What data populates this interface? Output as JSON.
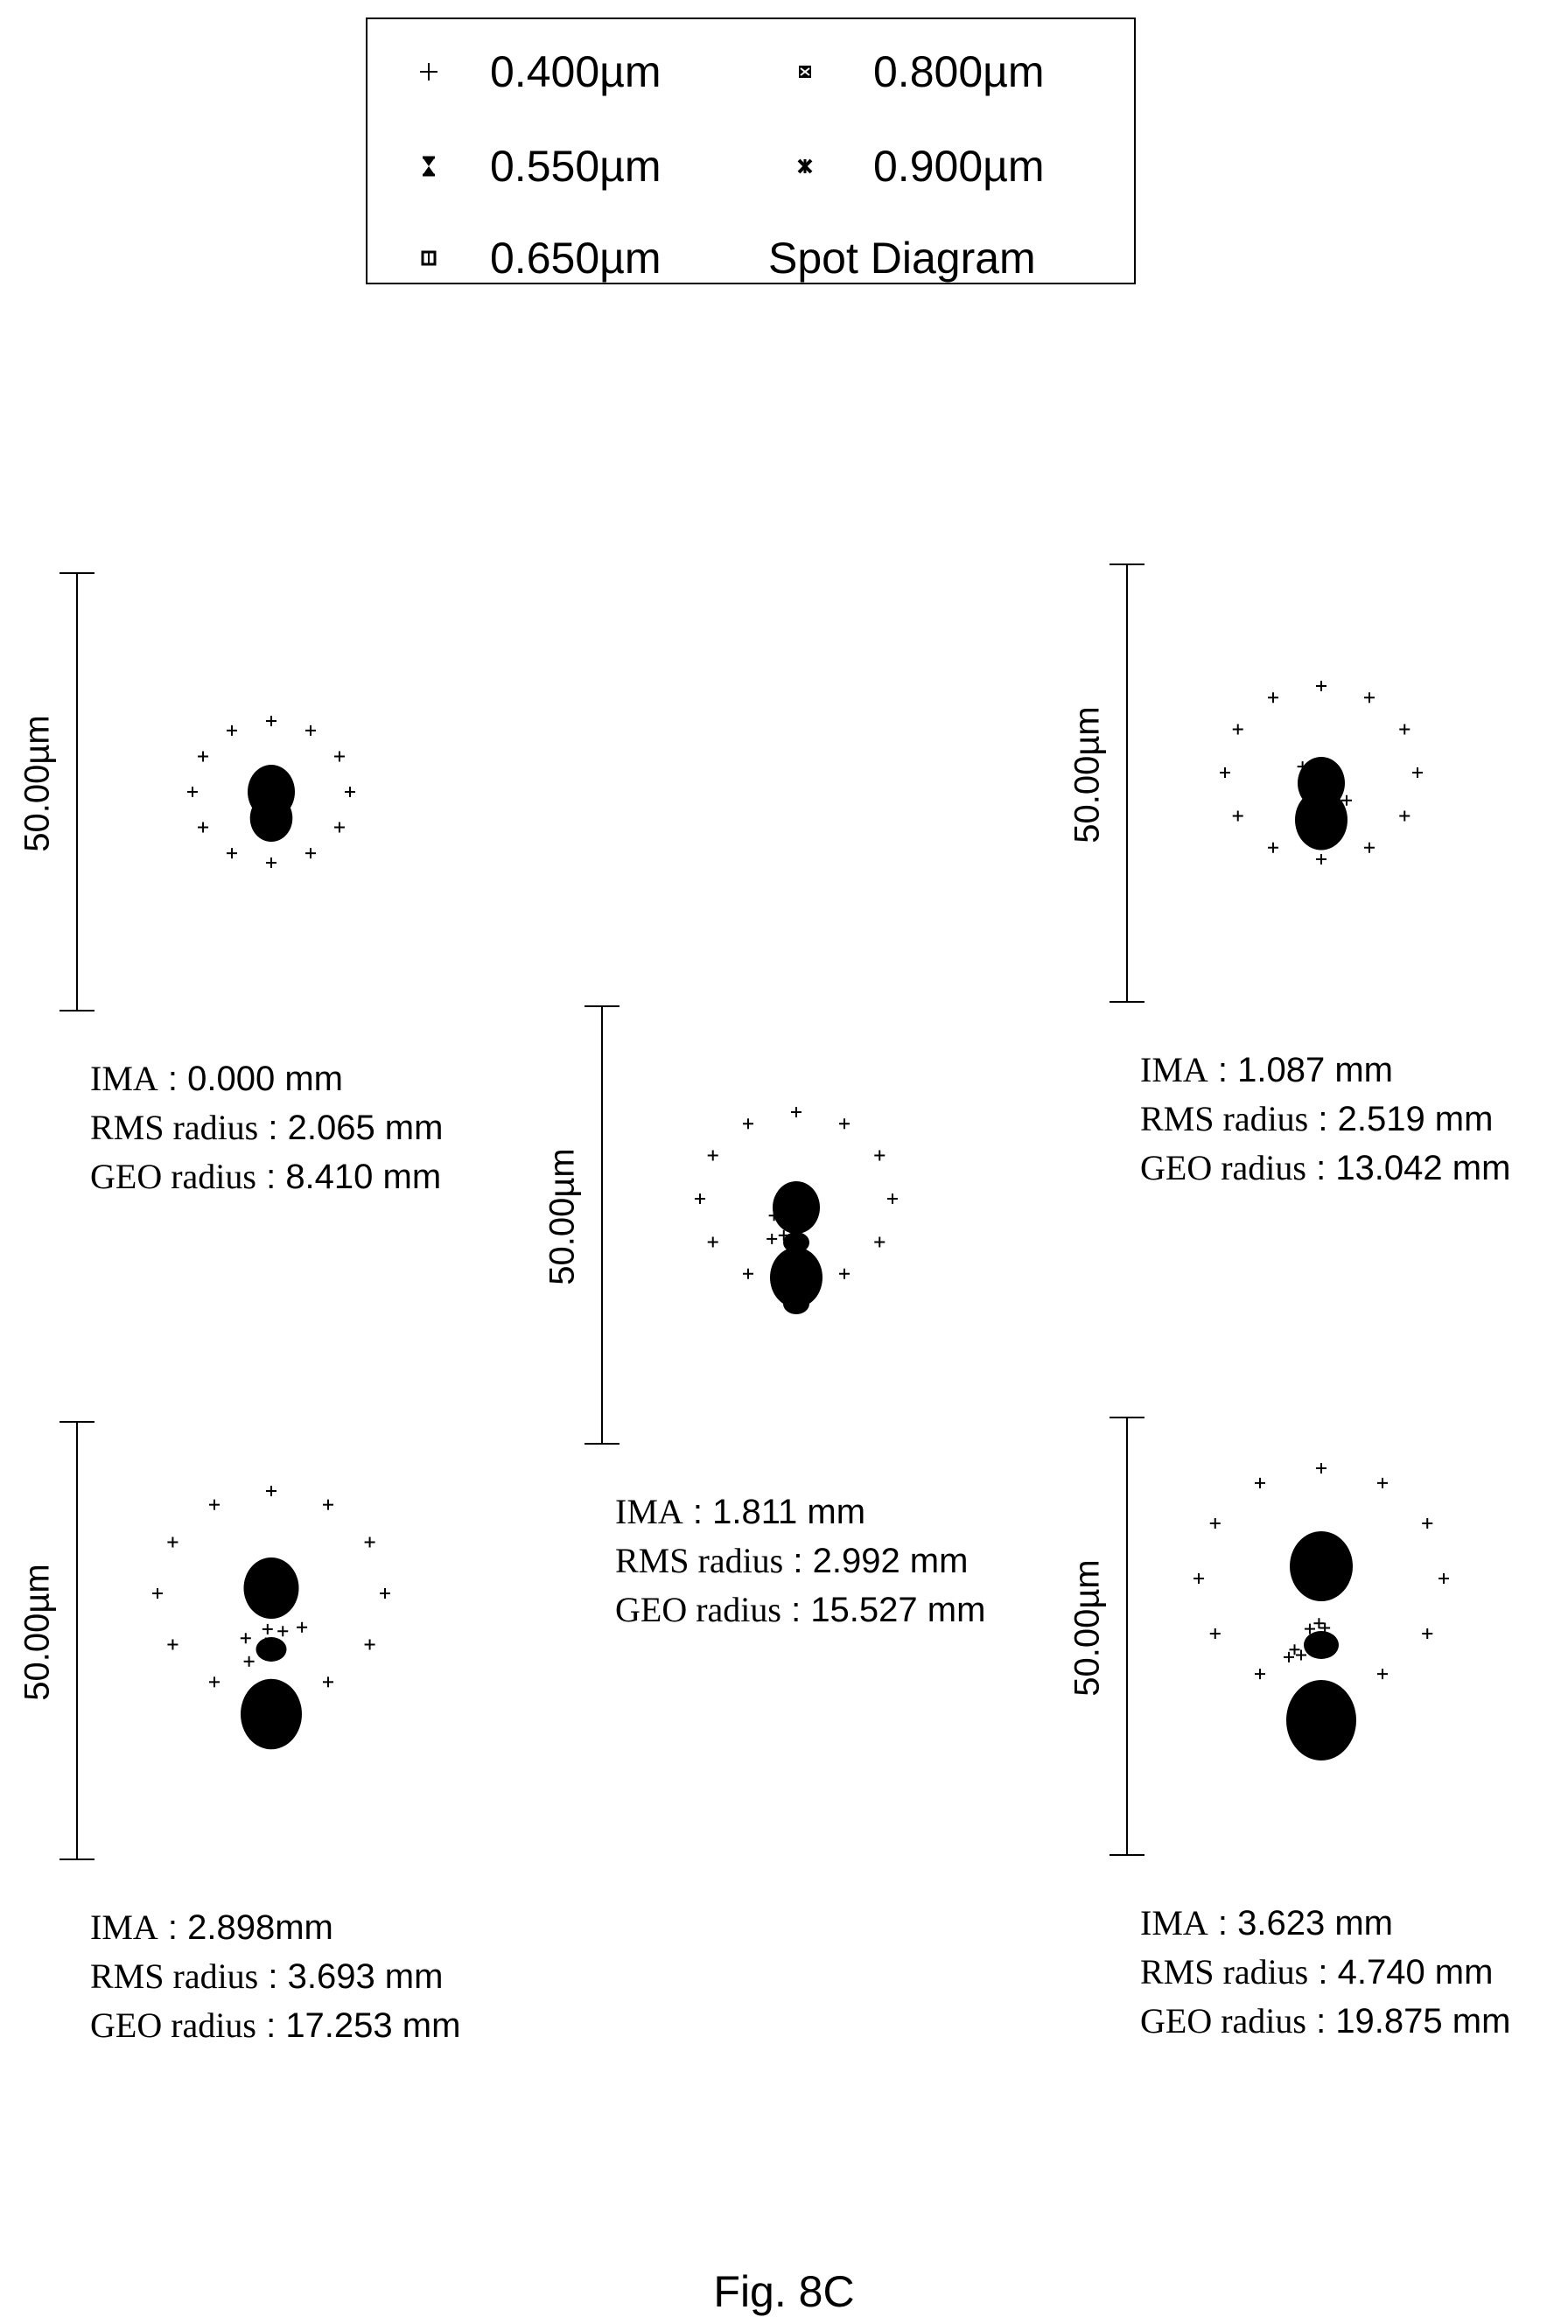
{
  "legend": {
    "items": [
      {
        "label": "0.400µm",
        "marker": "plus"
      },
      {
        "label": "0.550µm",
        "marker": "hourglass"
      },
      {
        "label": "0.650µm",
        "marker": "square-open"
      },
      {
        "label": "0.800µm",
        "marker": "square-hatched"
      },
      {
        "label": "0.900µm",
        "marker": "x-cross"
      }
    ],
    "title": "Spot Diagram"
  },
  "chart_data": [
    {
      "type": "scatter",
      "title": "",
      "scale_bar": "50.00µm",
      "stats": {
        "ima_label": "IMA",
        "ima": "0.000 mm",
        "rms_label": "RMS radius",
        "rms": "2.065 mm",
        "geo_label": "GEO radius",
        "geo": "8.410 mm"
      },
      "spots": {
        "plus_ring_radius": 9.0,
        "plus_ring_count": 12,
        "core_center": [
          0,
          0
        ],
        "core_radius": 2.7,
        "dy_by_wavelength": {
          "0.550": 0,
          "0.650": 0,
          "0.800": 0,
          "0.900": 0
        }
      }
    },
    {
      "type": "scatter",
      "title": "",
      "scale_bar": "50.00µm",
      "stats": {
        "ima_label": "IMA",
        "ima": "1.811 mm",
        "rms_label": "RMS radius",
        "rms": "2.992 mm",
        "geo_label": "GEO radius",
        "geo": "15.527 mm"
      },
      "spots": {
        "plus_ring_radius": 11,
        "plus_ring_count": 12,
        "core_center": [
          0,
          -5
        ],
        "core_radius": 3,
        "dy_by_wavelength": {
          "0.550": -5,
          "0.650": -1,
          "0.800": 2,
          "0.900": 6
        }
      }
    },
    {
      "type": "scatter",
      "title": "",
      "scale_bar": "50.00µm",
      "stats": {
        "ima_label": "IMA",
        "ima": "1.087 mm",
        "rms_label": "RMS radius",
        "rms": "2.519 mm",
        "geo_label": "GEO radius",
        "geo": "13.042 mm"
      },
      "spots": {
        "plus_ring_radius": 11,
        "plus_ring_count": 12,
        "core_center": [
          0,
          -2
        ],
        "core_radius": 3,
        "dy_by_wavelength": {
          "0.550": -3,
          "0.650": -2,
          "0.800": 0,
          "0.900": 2
        }
      }
    },
    {
      "type": "scatter",
      "title": "",
      "scale_bar": "50.00µm",
      "stats": {
        "ima_label": "IMA",
        "ima": "2.898mm",
        "rms_label": "RMS radius",
        "rms": "3.693 mm",
        "geo_label": "GEO radius",
        "geo": "17.253 mm"
      },
      "spots": {
        "plus_ring_radius": 13,
        "plus_ring_count": 12,
        "core_center": [
          0,
          -9
        ],
        "core_radius": 3.5,
        "dy_by_wavelength": {
          "0.550": -9,
          "0.650": -2,
          "0.800": 3,
          "0.900": 6
        }
      }
    },
    {
      "type": "scatter",
      "title": "",
      "scale_bar": "50.00µm",
      "stats": {
        "ima_label": "IMA",
        "ima": "3.623 mm",
        "rms_label": "RMS radius",
        "rms": "4.740 mm",
        "geo_label": "GEO radius",
        "geo": "19.875 mm"
      },
      "spots": {
        "plus_ring_radius": 14,
        "plus_ring_count": 12,
        "core_center": [
          0,
          -11
        ],
        "core_radius": 4,
        "dy_by_wavelength": {
          "0.550": -11,
          "0.650": -2,
          "0.800": 5,
          "0.900": 8
        }
      }
    }
  ],
  "caption": "Fig. 8C"
}
